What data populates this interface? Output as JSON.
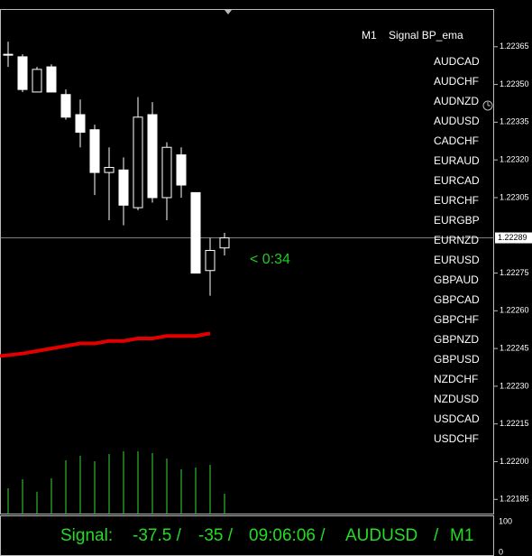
{
  "chart_data": {
    "type": "candlestick",
    "title": "M1",
    "subtitle": "Signal BP_ema",
    "open": [
      1.22362,
      1.22361,
      1.22347,
      1.22357,
      1.22346,
      1.22338,
      1.22332,
      1.22315,
      1.22316,
      1.22301,
      1.22338,
      1.22305,
      1.22322,
      1.22307,
      1.22276,
      1.22285
    ],
    "high": [
      1.22367,
      1.22362,
      1.22357,
      1.22358,
      1.22348,
      1.22344,
      1.22334,
      1.22325,
      1.22321,
      1.22345,
      1.22343,
      1.22327,
      1.22325,
      1.22307,
      1.22289,
      1.22291
    ],
    "low": [
      1.22357,
      1.22347,
      1.22347,
      1.22347,
      1.22336,
      1.22325,
      1.22306,
      1.22296,
      1.22294,
      1.223,
      1.22303,
      1.22296,
      1.22305,
      1.22275,
      1.22266,
      1.22282
    ],
    "close": [
      1.22362,
      1.22348,
      1.22356,
      1.22347,
      1.22337,
      1.22331,
      1.22315,
      1.22317,
      1.22302,
      1.22337,
      1.22305,
      1.22325,
      1.2231,
      1.22275,
      1.22284,
      1.22289
    ],
    "ema": [
      1.22242,
      1.22243,
      1.22244,
      1.22245,
      1.22246,
      1.22247,
      1.22247,
      1.22248,
      1.22248,
      1.22249,
      1.22249,
      1.2225,
      1.2225,
      1.2225,
      1.22251,
      null
    ],
    "volume": [
      29,
      39,
      25,
      40,
      60,
      65,
      59,
      67,
      70,
      70,
      68,
      62,
      50,
      52,
      55,
      23
    ],
    "candle_color": "#ffffff",
    "ema_color": "#e00000",
    "volume_color": "#33dd33",
    "ylim": [
      1.22179,
      1.2238
    ],
    "yticks": [
      1.22365,
      {
        "value": 1.2235,
        "label": "1.22350"
      },
      1.22335,
      {
        "value": 1.2232,
        "label": "1.22320"
      },
      1.22305,
      1.22275,
      {
        "value": 1.2226,
        "label": "1.22260"
      },
      1.22245,
      {
        "value": 1.2223,
        "label": "1.22230"
      },
      1.22215,
      {
        "value": 1.222,
        "label": "1.22200"
      },
      1.22185
    ],
    "current_price": 1.22289,
    "countdown": "< 0:34",
    "symbols": [
      "AUDCAD",
      "AUDCHF",
      "AUDNZD",
      "AUDUSD",
      "CADCHF",
      "EURAUD",
      "EURCAD",
      "EURCHF",
      "EURGBP",
      "EURNZD",
      "EURUSD",
      "GBPAUD",
      "GBPCAD",
      "GBPCHF",
      "GBPNZD",
      "GBPUSD",
      "NZDCHF",
      "NZDUSD",
      "USDCAD",
      "USDCHF"
    ],
    "signal_bar": [
      "Signal:",
      "-37.5 /",
      "-35 /",
      "09:06:06 /",
      "AUDUSD",
      "/",
      "M1"
    ],
    "subpane_ticks": [
      100,
      0
    ]
  }
}
